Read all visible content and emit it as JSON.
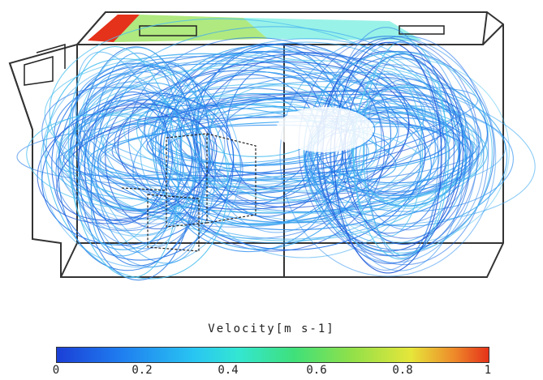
{
  "legend": {
    "title": "Velocity[m s-1]",
    "ticks": [
      "0",
      "0.2",
      "0.4",
      "0.6",
      "0.8",
      "1"
    ],
    "range": [
      0,
      1
    ],
    "colors": [
      "#1b3fd6",
      "#1f7ef0",
      "#29c6f2",
      "#33e6d2",
      "#3fe07a",
      "#8fe04a",
      "#e6e63a",
      "#ee8a2a",
      "#e5321a"
    ]
  }
}
